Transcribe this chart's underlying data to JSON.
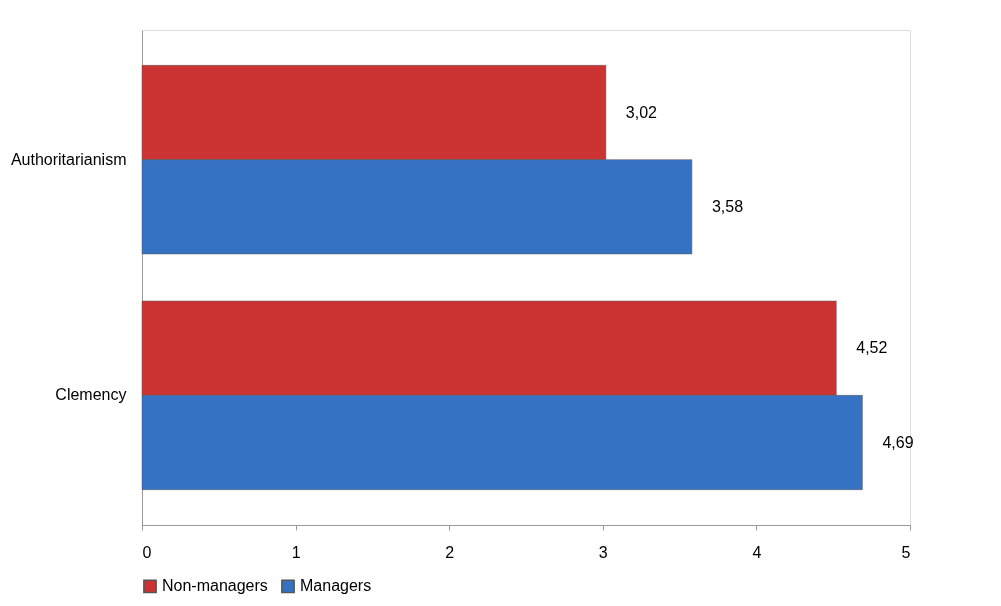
{
  "chart_data": {
    "type": "bar",
    "orientation": "horizontal",
    "categories": [
      "Authoritarianism",
      "Clemency"
    ],
    "series": [
      {
        "name": "Non-managers",
        "color": "#cc3333",
        "values": [
          3.02,
          4.52
        ],
        "value_labels": [
          "3,02",
          "4,52"
        ]
      },
      {
        "name": "Managers",
        "color": "#3672c4",
        "values": [
          3.58,
          4.69
        ],
        "value_labels": [
          "3,58",
          "4,69"
        ]
      }
    ],
    "xlim": [
      0,
      5
    ],
    "xticks": [
      0,
      1,
      2,
      3,
      4,
      5
    ],
    "grid": false,
    "legend": "bottom"
  }
}
